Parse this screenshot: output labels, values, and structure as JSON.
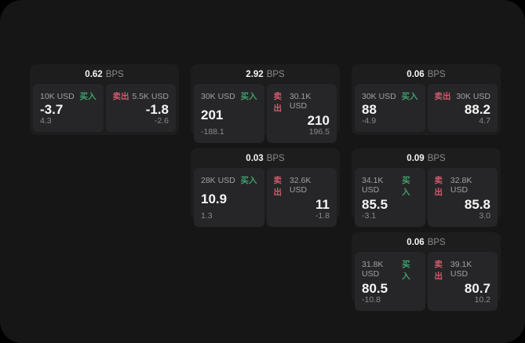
{
  "theme": {
    "outer_bg": "#000000",
    "page_bg": "#161616",
    "card_bg": "#1d1d1e",
    "panel_bg": "#262628",
    "buy_color": "#40a06c",
    "sell_color": "#d15a6c",
    "text_primary": "#f5f5f5",
    "text_muted": "#8a8a8d"
  },
  "labels": {
    "bps": "BPS",
    "buy": "买入",
    "sell": "卖出"
  },
  "cards": [
    {
      "col": 1,
      "row": 1,
      "bps": "0.62",
      "buy": {
        "size": "10K USD",
        "price": "-3.7",
        "delta": "4.3"
      },
      "sell": {
        "size": "5.5K USD",
        "price": "-1.8",
        "delta": "-2.6"
      }
    },
    {
      "col": 2,
      "row": 1,
      "bps": "2.92",
      "buy": {
        "size": "30K USD",
        "price": "201",
        "delta": "-188.1"
      },
      "sell": {
        "size": "30.1K USD",
        "price": "210",
        "delta": "196.5"
      }
    },
    {
      "col": 3,
      "row": 1,
      "bps": "0.06",
      "buy": {
        "size": "30K USD",
        "price": "88",
        "delta": "-4.9"
      },
      "sell": {
        "size": "30K USD",
        "price": "88.2",
        "delta": "4.7"
      }
    },
    {
      "col": 2,
      "row": 2,
      "bps": "0.03",
      "buy": {
        "size": "28K USD",
        "price": "10.9",
        "delta": "1.3"
      },
      "sell": {
        "size": "32.6K USD",
        "price": "11",
        "delta": "-1.8"
      }
    },
    {
      "col": 3,
      "row": 2,
      "bps": "0.09",
      "buy": {
        "size": "34.1K USD",
        "price": "85.5",
        "delta": "-3.1"
      },
      "sell": {
        "size": "32.8K USD",
        "price": "85.8",
        "delta": "3.0"
      }
    },
    {
      "col": 3,
      "row": 3,
      "bps": "0.06",
      "buy": {
        "size": "31.8K USD",
        "price": "80.5",
        "delta": "-10.8"
      },
      "sell": {
        "size": "39.1K USD",
        "price": "80.7",
        "delta": "10.2"
      }
    }
  ]
}
